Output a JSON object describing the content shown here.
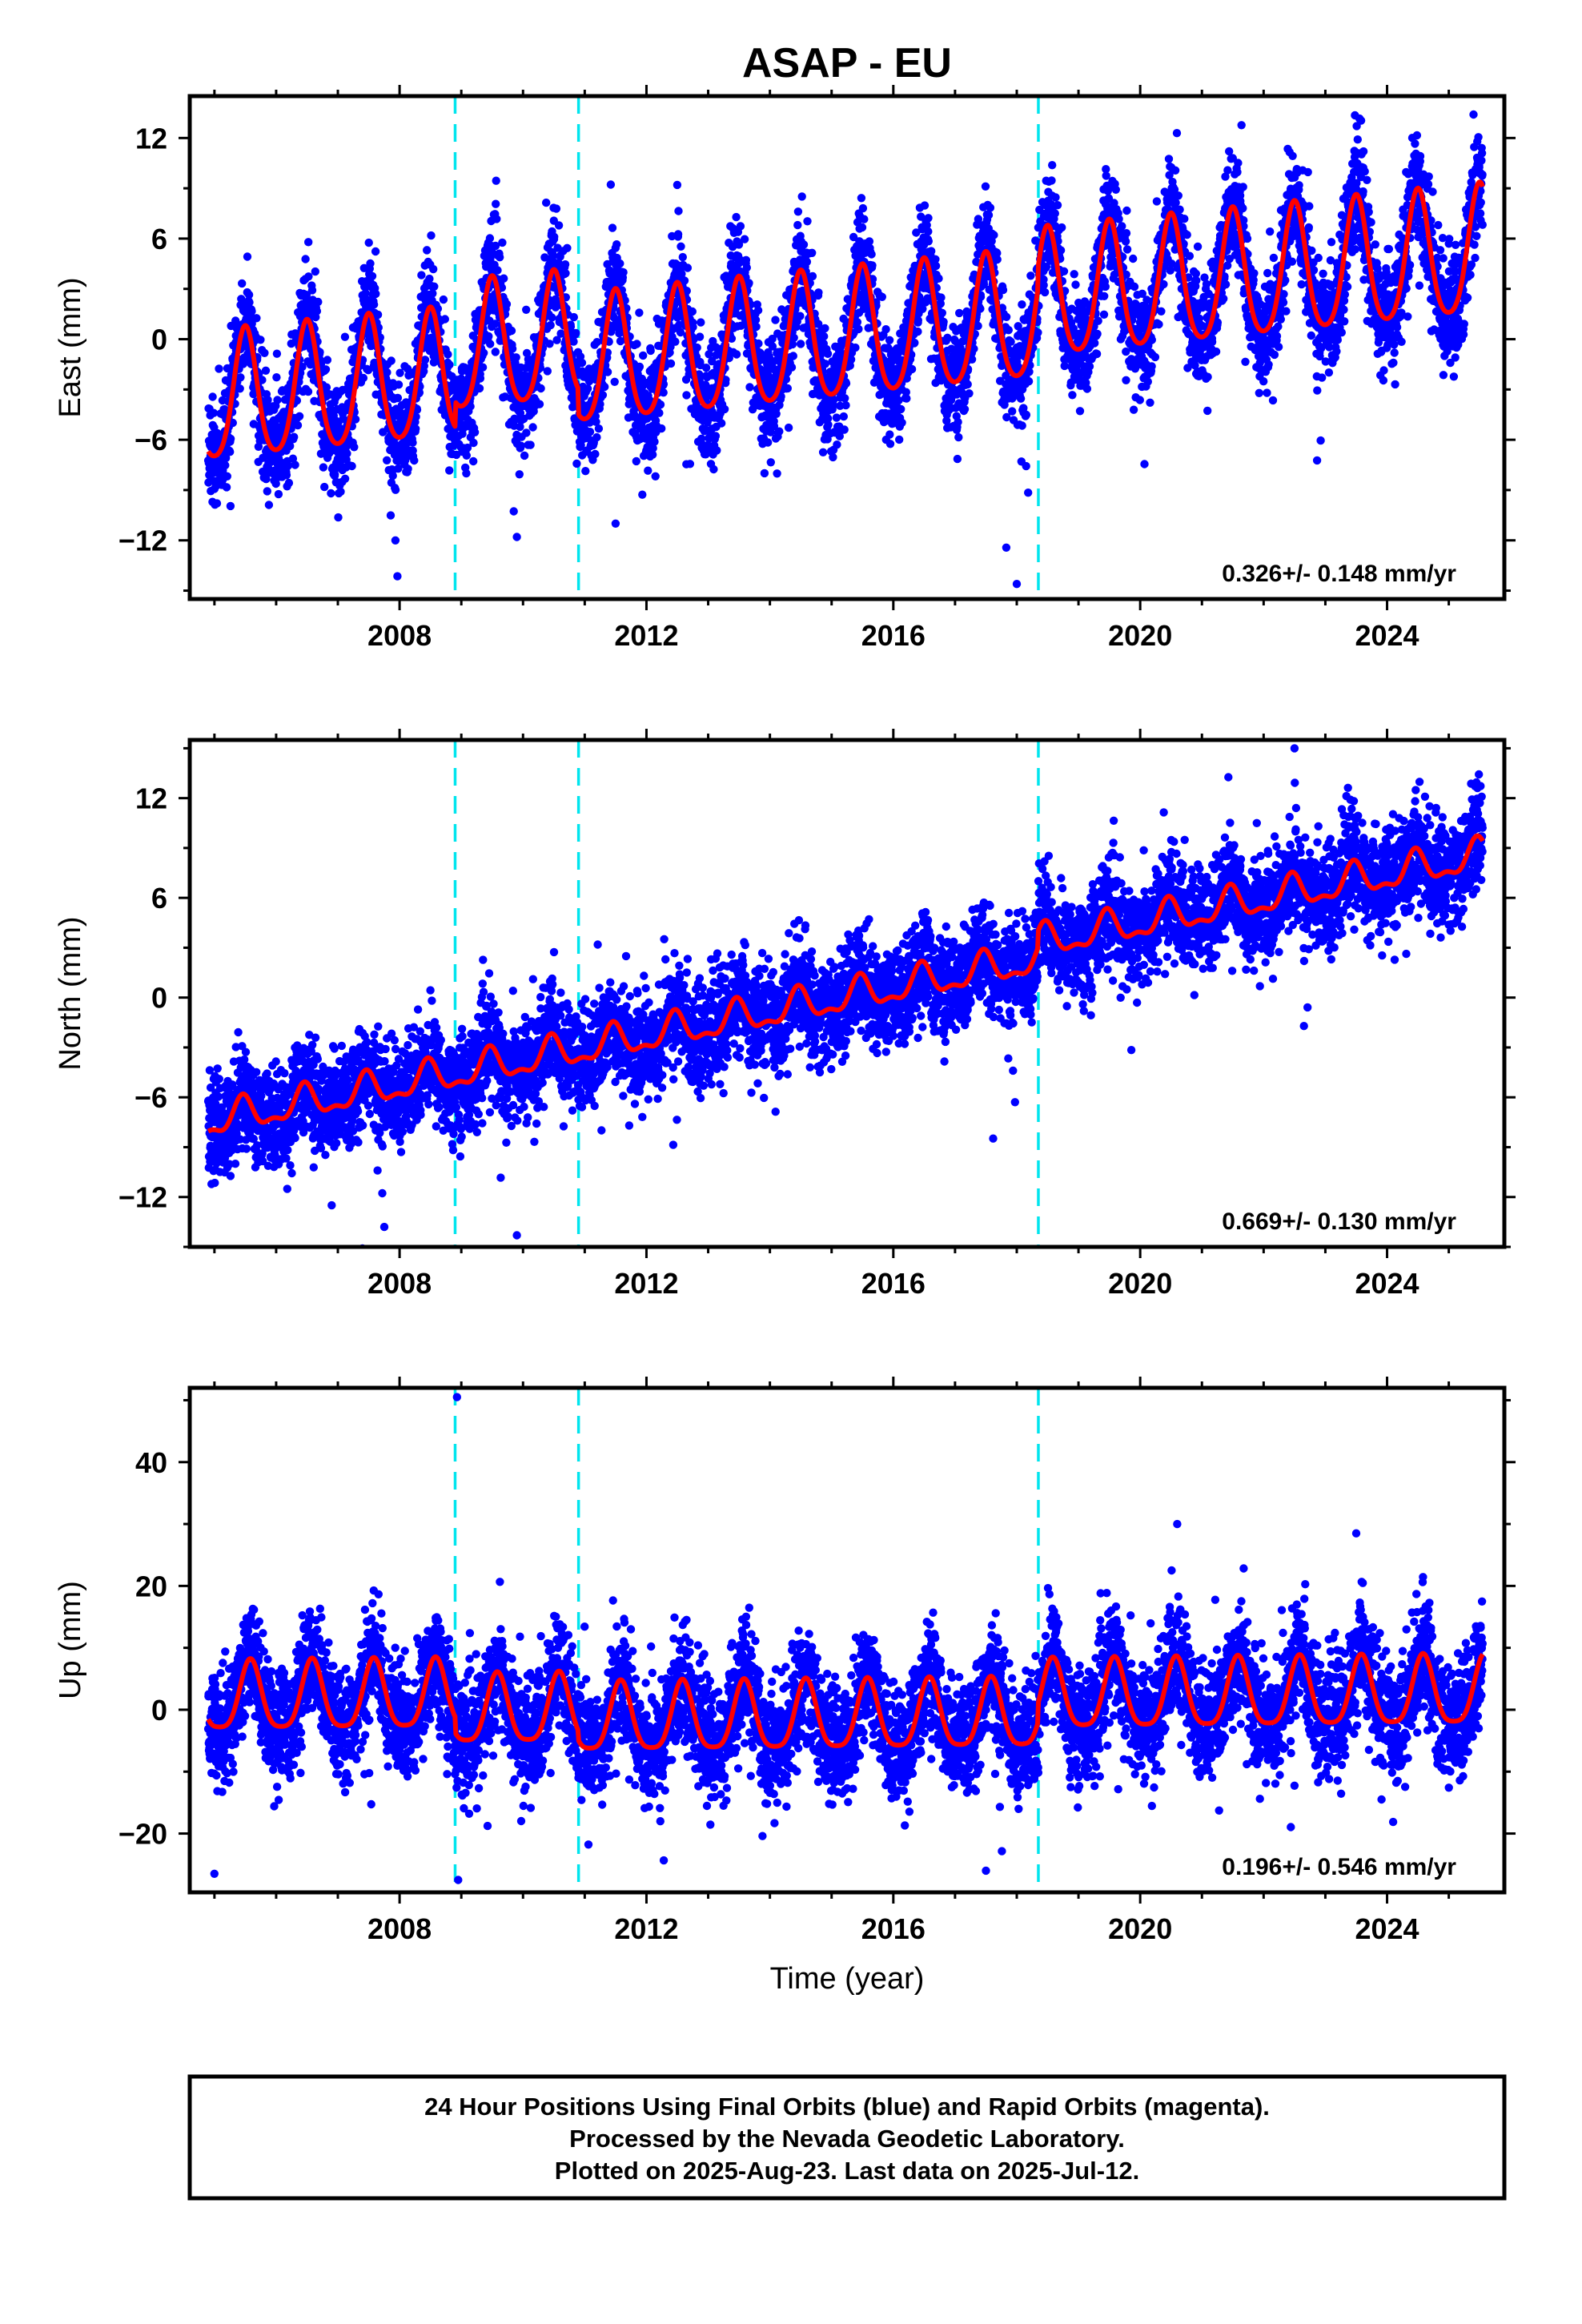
{
  "title": "ASAP - EU",
  "colors": {
    "final_orbits": "#0000ff",
    "model": "#ff0000",
    "offsets": "#00e5ee",
    "frame": "#000000"
  },
  "footer": {
    "lines": [
      "24 Hour Positions Using Final Orbits (blue) and Rapid Orbits (magenta).",
      "Processed by the Nevada Geodetic Laboratory.",
      "Plotted on 2025-Aug-23. Last data on 2025-Jul-12."
    ]
  },
  "chart_data": [
    {
      "type": "scatter",
      "ylabel": "East (mm)",
      "xlabel": "",
      "xlim": [
        2004.6,
        2025.9
      ],
      "ylim": [
        -15.5,
        14.5
      ],
      "xticks": [
        2008,
        2012,
        2016,
        2020,
        2024
      ],
      "xtick_labels": [
        "2008",
        "2012",
        "2016",
        "2020",
        "2024"
      ],
      "yticks": [
        -12,
        -6,
        0,
        6,
        12
      ],
      "ytick_labels": [
        "−12",
        "−6",
        "0",
        "6",
        "12"
      ],
      "rate_label": "0.326+/- 0.148 mm/yr",
      "offset_lines_x": [
        2008.9,
        2010.9,
        2018.35
      ],
      "model": {
        "x_range": [
          2004.9,
          2025.55
        ],
        "trend_start": -3.8,
        "trend_end": 3.8,
        "annual_amp": 3.8,
        "annual_peak_month": 6.5,
        "semiannual_amp": 0.6,
        "steps": [
          {
            "x": 2008.9,
            "dy": 1.5
          },
          {
            "x": 2010.9,
            "dy": -1.5
          },
          {
            "x": 2018.35,
            "dy": 1.2
          }
        ]
      },
      "scatter": {
        "count": 7000,
        "noise": 1.6,
        "outliers": [
          [
            2018.0,
            -14.6
          ],
          [
            2025.4,
            13.4
          ],
          [
            2009.9,
            -11.8
          ],
          [
            2011.5,
            -11.0
          ]
        ]
      }
    },
    {
      "type": "scatter",
      "ylabel": "North (mm)",
      "xlabel": "",
      "xlim": [
        2004.6,
        2025.9
      ],
      "ylim": [
        -15.0,
        15.5
      ],
      "xticks": [
        2008,
        2012,
        2016,
        2020,
        2024
      ],
      "xtick_labels": [
        "2008",
        "2012",
        "2016",
        "2020",
        "2024"
      ],
      "yticks": [
        -12,
        -6,
        0,
        6,
        12
      ],
      "ytick_labels": [
        "−12",
        "−6",
        "0",
        "6",
        "12"
      ],
      "rate_label": "0.669+/- 0.130 mm/yr",
      "offset_lines_x": [
        2008.9,
        2010.9,
        2018.35
      ],
      "model": {
        "x_range": [
          2004.9,
          2025.55
        ],
        "trend_start": -7.5,
        "trend_end": 7.5,
        "annual_amp": 0.9,
        "annual_peak_month": 6.0,
        "semiannual_amp": 0.4,
        "steps": [
          {
            "x": 2018.35,
            "dy": 1.0
          }
        ]
      },
      "scatter": {
        "count": 7000,
        "noise": 1.5,
        "outliers": [
          [
            2009.9,
            -14.3
          ],
          [
            2022.5,
            15.0
          ],
          [
            2006.9,
            -12.5
          ]
        ]
      }
    },
    {
      "type": "scatter",
      "ylabel": "Up (mm)",
      "xlabel": "Time (year)",
      "xlim": [
        2004.6,
        2025.9
      ],
      "ylim": [
        -29.5,
        52.0
      ],
      "xticks": [
        2008,
        2012,
        2016,
        2020,
        2024
      ],
      "xtick_labels": [
        "2008",
        "2012",
        "2016",
        "2020",
        "2024"
      ],
      "yticks": [
        -20,
        0,
        20,
        40
      ],
      "ytick_labels": [
        "−20",
        "0",
        "20",
        "40"
      ],
      "rate_label": "0.196+/- 0.546 mm/yr",
      "offset_lines_x": [
        2008.9,
        2010.9,
        2018.35
      ],
      "model": {
        "x_range": [
          2004.9,
          2025.55
        ],
        "trend_start": 1.5,
        "trend_end": 3.5,
        "annual_amp": 5.5,
        "annual_peak_month": 7.5,
        "semiannual_amp": 1.2,
        "steps": [
          {
            "x": 2008.9,
            "dy": -2.5
          },
          {
            "x": 2010.9,
            "dy": -1.5
          },
          {
            "x": 2018.35,
            "dy": 3.0
          }
        ]
      },
      "scatter": {
        "count": 7000,
        "noise": 4.5,
        "outliers": [
          [
            2008.93,
            50.5
          ],
          [
            2008.95,
            -27.5
          ],
          [
            2005.0,
            -26.5
          ],
          [
            2017.5,
            -26.0
          ],
          [
            2020.6,
            30.0
          ],
          [
            2023.5,
            28.5
          ]
        ]
      }
    }
  ]
}
